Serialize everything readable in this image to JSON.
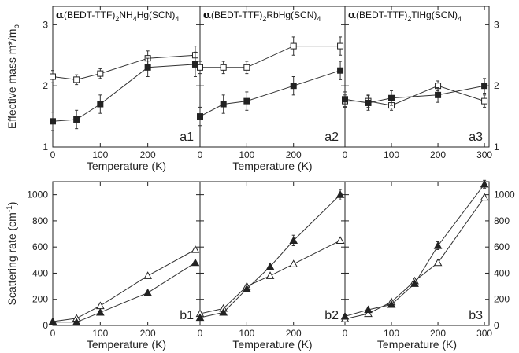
{
  "chart_data": [
    {
      "id": "a1",
      "type": "scatter",
      "panel_label": "a1",
      "title_greek": "α",
      "title_main": "(BEDT-TTF)",
      "title_parts": [
        [
          "(BEDT-TTF)",
          ""
        ],
        [
          "2",
          "sub"
        ],
        [
          "NH",
          ""
        ],
        [
          "4",
          "sub"
        ],
        [
          "Hg(SCN)",
          ""
        ],
        [
          "4",
          "sub"
        ]
      ],
      "ylabel": "Effective mass m*/m",
      "ylabel_sub": "b",
      "xlabel": "Temperature (K)",
      "xlim": [
        0,
        310
      ],
      "ylim": [
        1,
        3.3
      ],
      "x_ticks": [
        0,
        100,
        200
      ],
      "y_ticks": [
        1,
        2,
        3
      ],
      "series": [
        {
          "marker": "square-open",
          "x": [
            0,
            50,
            100,
            200,
            300
          ],
          "y": [
            2.15,
            2.1,
            2.2,
            2.45,
            2.5
          ],
          "err": [
            0.1,
            0.08,
            0.08,
            0.12,
            0.15
          ]
        },
        {
          "marker": "square-filled",
          "x": [
            0,
            50,
            100,
            200,
            300
          ],
          "y": [
            1.42,
            1.45,
            1.7,
            2.3,
            2.35
          ],
          "err": [
            0.15,
            0.15,
            0.15,
            0.15,
            0.2
          ]
        }
      ]
    },
    {
      "id": "a2",
      "type": "scatter",
      "panel_label": "a2",
      "title_greek": "α",
      "title_parts": [
        [
          "(BEDT-TTF)",
          ""
        ],
        [
          "2",
          "sub"
        ],
        [
          "RbHg(SCN)",
          ""
        ],
        [
          "4",
          "sub"
        ]
      ],
      "xlabel": "Temperature (K)",
      "xlim": [
        0,
        310
      ],
      "ylim": [
        1,
        3.3
      ],
      "x_ticks": [
        0,
        100,
        200
      ],
      "y_ticks": [
        1,
        2,
        3
      ],
      "series": [
        {
          "marker": "square-open",
          "x": [
            0,
            50,
            100,
            200,
            300
          ],
          "y": [
            2.3,
            2.3,
            2.3,
            2.65,
            2.65
          ],
          "err": [
            0.1,
            0.1,
            0.1,
            0.15,
            0.15
          ]
        },
        {
          "marker": "square-filled",
          "x": [
            0,
            50,
            100,
            200,
            300
          ],
          "y": [
            1.5,
            1.7,
            1.75,
            2.0,
            2.25
          ],
          "err": [
            0.15,
            0.15,
            0.15,
            0.15,
            0.15
          ]
        }
      ]
    },
    {
      "id": "a3",
      "type": "scatter",
      "panel_label": "a3",
      "title_greek": "α",
      "title_parts": [
        [
          "(BEDT-TTF)",
          ""
        ],
        [
          "2",
          "sub"
        ],
        [
          "TlHg(SCN)",
          ""
        ],
        [
          "4",
          "sub"
        ]
      ],
      "xlabel": "",
      "xlim": [
        0,
        310
      ],
      "ylim": [
        1,
        3.3
      ],
      "x_ticks": [
        0,
        100,
        200,
        300
      ],
      "y_ticks": [
        1,
        2,
        3
      ],
      "right_y_ticks": [
        1,
        2,
        3
      ],
      "series": [
        {
          "marker": "square-open",
          "x": [
            0,
            50,
            100,
            200,
            300
          ],
          "y": [
            1.75,
            1.75,
            1.68,
            2.0,
            1.75
          ],
          "err": [
            0.1,
            0.1,
            0.08,
            0.08,
            0.1
          ]
        },
        {
          "marker": "square-filled",
          "x": [
            0,
            50,
            100,
            200,
            300
          ],
          "y": [
            1.78,
            1.72,
            1.8,
            1.85,
            2.0
          ],
          "err": [
            0.12,
            0.12,
            0.12,
            0.12,
            0.12
          ]
        }
      ]
    },
    {
      "id": "b1",
      "type": "scatter",
      "panel_label": "b1",
      "ylabel": "Scattering rate (cm",
      "ylabel_sup": "-1",
      "ylabel_end": ")",
      "xlabel": "Temperature (K)",
      "xlim": [
        0,
        310
      ],
      "ylim": [
        0,
        1100
      ],
      "x_ticks": [
        0,
        100,
        200
      ],
      "y_ticks": [
        0,
        200,
        400,
        600,
        800,
        1000
      ],
      "series": [
        {
          "marker": "triangle-open",
          "x": [
            0,
            50,
            100,
            200,
            300
          ],
          "y": [
            30,
            55,
            150,
            380,
            580
          ],
          "err": [
            0,
            0,
            0,
            0,
            0
          ]
        },
        {
          "marker": "triangle-filled",
          "x": [
            0,
            50,
            100,
            200,
            300
          ],
          "y": [
            25,
            25,
            100,
            250,
            480
          ],
          "err": [
            0,
            0,
            0,
            0,
            0
          ]
        }
      ]
    },
    {
      "id": "b2",
      "type": "scatter",
      "panel_label": "b2",
      "xlabel": "Temperature (K)",
      "xlim": [
        0,
        310
      ],
      "ylim": [
        0,
        1100
      ],
      "x_ticks": [
        0,
        100,
        200
      ],
      "y_ticks": [
        0,
        200,
        400,
        600,
        800,
        1000
      ],
      "series": [
        {
          "marker": "triangle-open",
          "x": [
            0,
            50,
            100,
            150,
            200,
            300
          ],
          "y": [
            90,
            130,
            300,
            380,
            470,
            650
          ],
          "err": [
            0,
            0,
            0,
            0,
            0,
            0
          ]
        },
        {
          "marker": "triangle-filled",
          "x": [
            0,
            50,
            100,
            150,
            200,
            300
          ],
          "y": [
            60,
            100,
            280,
            450,
            650,
            1000
          ],
          "err": [
            0,
            0,
            0,
            0,
            40,
            40
          ]
        }
      ]
    },
    {
      "id": "b3",
      "type": "scatter",
      "panel_label": "b3",
      "xlabel": "Temperature (K)",
      "xlim": [
        0,
        310
      ],
      "ylim": [
        0,
        1100
      ],
      "x_ticks": [
        0,
        100,
        200,
        300
      ],
      "y_ticks": [
        0,
        200,
        400,
        600,
        800,
        1000
      ],
      "right_y_ticks": [
        0,
        200,
        400,
        600,
        800,
        1000
      ],
      "series": [
        {
          "marker": "triangle-open",
          "x": [
            0,
            50,
            100,
            150,
            200,
            300
          ],
          "y": [
            50,
            90,
            180,
            340,
            480,
            980
          ],
          "err": [
            0,
            0,
            0,
            0,
            0,
            0
          ]
        },
        {
          "marker": "triangle-filled",
          "x": [
            0,
            50,
            100,
            150,
            200,
            300
          ],
          "y": [
            70,
            120,
            160,
            320,
            610,
            1080
          ],
          "err": [
            0,
            0,
            0,
            0,
            30,
            30
          ]
        }
      ]
    }
  ]
}
